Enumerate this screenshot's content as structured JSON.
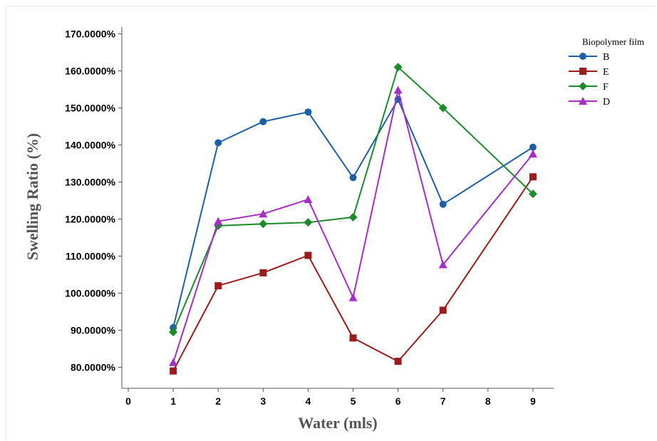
{
  "chart_data": {
    "type": "line",
    "xlabel": "Water (mls)",
    "ylabel": "Swelling Ratio (%)",
    "x_ticks": [
      "0",
      "1",
      "2",
      "3",
      "4",
      "5",
      "6",
      "7",
      "8",
      "9"
    ],
    "y_ticks": [
      "80.0000%",
      "90.0000%",
      "100.0000%",
      "110.0000%",
      "120.0000%",
      "130.0000%",
      "140.0000%",
      "150.0000%",
      "160.0000%",
      "170.0000%"
    ],
    "xlim": [
      0,
      9
    ],
    "ylim": [
      75,
      171
    ],
    "grid": false,
    "legend": {
      "title": "Biopolymer film",
      "position": "top-right"
    },
    "x": [
      1,
      2,
      3,
      4,
      5,
      6,
      7,
      9
    ],
    "series": [
      {
        "name": "B",
        "color": "#1f5fa6",
        "marker": "circle",
        "values": [
          90.7,
          140.6,
          146.3,
          148.9,
          131.2,
          152.3,
          124.0,
          139.4
        ]
      },
      {
        "name": "E",
        "color": "#9b1c1f",
        "marker": "square",
        "values": [
          79.0,
          102.0,
          105.5,
          110.2,
          87.9,
          81.6,
          95.4,
          131.4
        ]
      },
      {
        "name": "F",
        "color": "#1e8a2e",
        "marker": "diamond",
        "values": [
          89.5,
          118.2,
          118.7,
          119.1,
          120.5,
          161.0,
          150.0,
          126.8
        ]
      },
      {
        "name": "D",
        "color": "#a42fc4",
        "marker": "triangle",
        "values": [
          81.3,
          119.4,
          121.4,
          125.3,
          98.8,
          154.8,
          107.7,
          137.6
        ]
      }
    ]
  }
}
